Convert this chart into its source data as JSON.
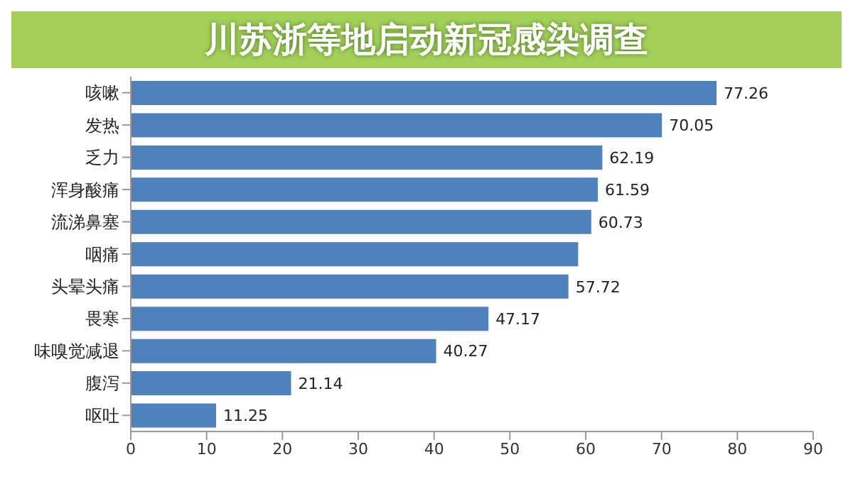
{
  "chart_data": {
    "type": "bar",
    "orientation": "horizontal",
    "title": "川苏浙等地启动新冠感染调查",
    "categories": [
      "咳嗽",
      "发热",
      "乏力",
      "浑身酸痛",
      "流涕鼻塞",
      "咽痛",
      "头晕头痛",
      "畏寒",
      "味嗅觉减退",
      "腹泻",
      "呕吐"
    ],
    "values": [
      77.26,
      70.05,
      62.19,
      61.59,
      60.73,
      59.0,
      57.72,
      47.17,
      40.27,
      21.14,
      11.25
    ],
    "value_labels": [
      "77.26",
      "70.05",
      "62.19",
      "61.59",
      "60.73",
      null,
      "57.72",
      "47.17",
      "40.27",
      "21.14",
      "11.25"
    ],
    "color": "#4f81bd",
    "xlim": [
      0,
      90
    ],
    "xticks": [
      0,
      10,
      20,
      30,
      40,
      50,
      60,
      70,
      80,
      90
    ]
  }
}
